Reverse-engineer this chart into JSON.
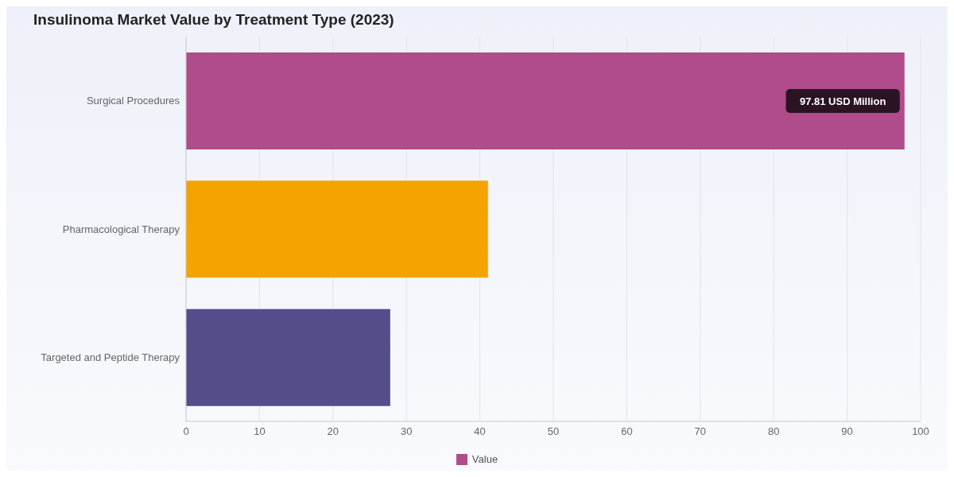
{
  "chart_data": {
    "type": "bar",
    "orientation": "horizontal",
    "title": "Insulinoma Market Value by Treatment Type (2023)",
    "categories": [
      "Surgical Procedures",
      "Pharmacological Therapy",
      "Targeted and Peptide Therapy"
    ],
    "series": [
      {
        "name": "Value",
        "color": "#b04c8b",
        "colors": [
          "#b04c8b",
          "#f5a300",
          "#534e8a"
        ],
        "values": [
          97.81,
          41.1,
          27.8
        ],
        "value_labels": [
          "97.81 USD Million",
          null,
          null
        ]
      }
    ],
    "xlim": [
      0,
      100
    ],
    "xticks": [
      0,
      10,
      20,
      30,
      40,
      50,
      60,
      70,
      80,
      90,
      100
    ],
    "grid": "x",
    "legend": "bottom"
  }
}
